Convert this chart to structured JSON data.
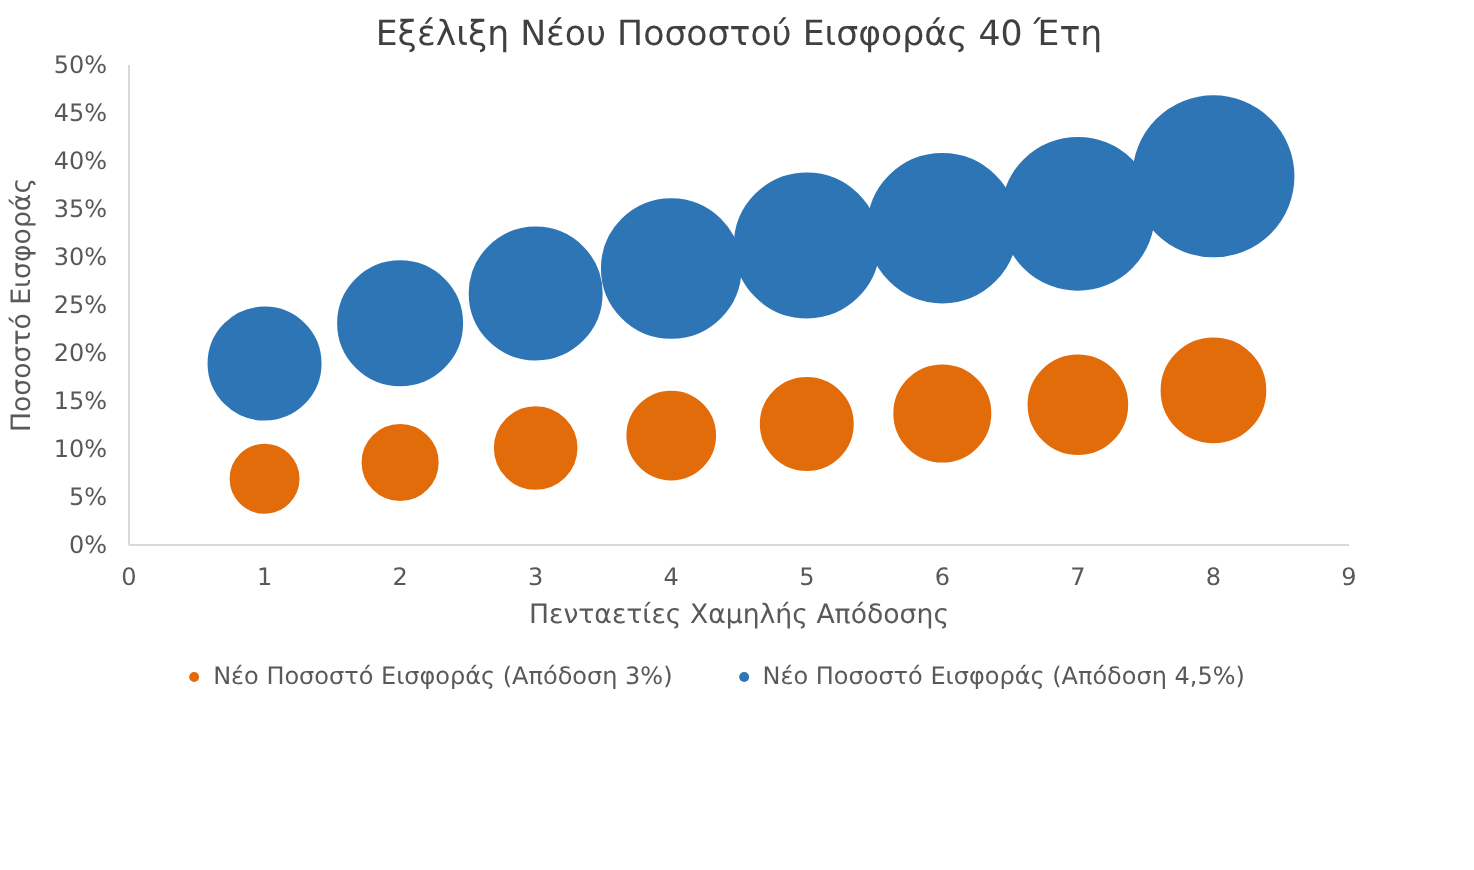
{
  "chart_data": {
    "type": "bubble",
    "title": "Εξέλιξη Νέου Ποσοστού Εισφοράς 40 Έτη",
    "xlabel": "Πενταετίες Χαμηλής Απόδοσης",
    "ylabel": "Ποσοστό Εισφοράς",
    "x": [
      1,
      2,
      3,
      4,
      5,
      6,
      7,
      8
    ],
    "series": [
      {
        "name": "Νέο Ποσοστό Εισφοράς (Απόδοση 3%)",
        "color": "#e36c0a",
        "values": [
          6.9,
          8.6,
          10.1,
          11.4,
          12.6,
          13.7,
          14.6,
          16.1
        ],
        "sizes": [
          0.18,
          0.22,
          0.26,
          0.3,
          0.33,
          0.36,
          0.38,
          0.42
        ]
      },
      {
        "name": "Νέο Ποσοστό Εισφοράς (Απόδοση 4,5%)",
        "color": "#2e75b6",
        "values": [
          18.9,
          23.1,
          26.2,
          28.8,
          31.2,
          33.0,
          34.5,
          38.4
        ],
        "sizes": [
          0.49,
          0.6,
          0.68,
          0.75,
          0.81,
          0.86,
          0.9,
          1
        ]
      }
    ],
    "xlim": [
      0,
      9
    ],
    "xticks": [
      0,
      1,
      2,
      3,
      4,
      5,
      6,
      7,
      8,
      9
    ],
    "ylim": [
      0,
      50
    ],
    "yticks": [
      {
        "value": 0,
        "label": "0%"
      },
      {
        "value": 5,
        "label": "5%"
      },
      {
        "value": 10,
        "label": "10%"
      },
      {
        "value": 15,
        "label": "15%"
      },
      {
        "value": 20,
        "label": "20%"
      },
      {
        "value": 25,
        "label": "25%"
      },
      {
        "value": 30,
        "label": "30%"
      },
      {
        "value": 35,
        "label": "35%"
      },
      {
        "value": 40,
        "label": "40%"
      },
      {
        "value": 45,
        "label": "45%"
      },
      {
        "value": 50,
        "label": "50%"
      }
    ],
    "grid": false,
    "legend": "bottom",
    "marker": "circle"
  }
}
